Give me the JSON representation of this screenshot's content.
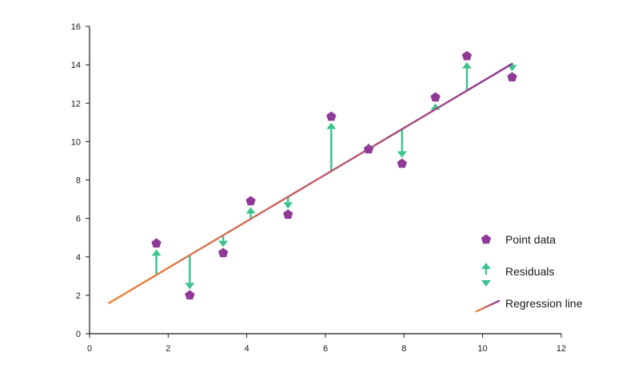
{
  "chart_data": {
    "type": "scatter",
    "xlim": [
      0,
      12
    ],
    "ylim": [
      0,
      16
    ],
    "x_ticks": [
      0,
      2,
      4,
      6,
      8,
      10,
      12
    ],
    "y_ticks": [
      0,
      2,
      4,
      6,
      8,
      10,
      12,
      14,
      16
    ],
    "grid": false,
    "legend_position": "right",
    "points": [
      {
        "x": 1.7,
        "y": 4.7
      },
      {
        "x": 2.55,
        "y": 2.0
      },
      {
        "x": 3.4,
        "y": 4.2
      },
      {
        "x": 4.1,
        "y": 6.9
      },
      {
        "x": 5.05,
        "y": 6.2
      },
      {
        "x": 6.15,
        "y": 11.3
      },
      {
        "x": 7.1,
        "y": 9.6
      },
      {
        "x": 7.95,
        "y": 8.85
      },
      {
        "x": 8.8,
        "y": 12.3
      },
      {
        "x": 9.6,
        "y": 14.45
      },
      {
        "x": 10.75,
        "y": 13.35
      }
    ],
    "regression_line": {
      "x": [
        0.5,
        10.75
      ],
      "y": [
        1.6,
        14.05
      ]
    },
    "legend": [
      {
        "label": "Point data",
        "kind": "point"
      },
      {
        "label": "Residuals",
        "kind": "residual"
      },
      {
        "label": "Regression line",
        "kind": "line"
      }
    ],
    "colors": {
      "point": "#8e3a96",
      "residual": "#3cc48f",
      "line_start": "#f08a3e",
      "line_end": "#8e3a96",
      "axis": "#1a1a1a"
    }
  }
}
